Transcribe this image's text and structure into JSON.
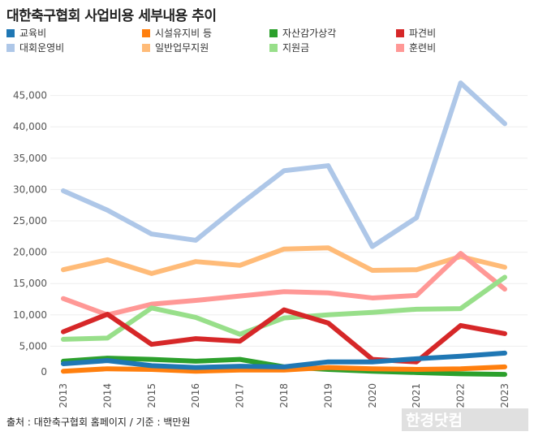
{
  "chart_data": {
    "type": "line",
    "title": "대한축구협회 사업비용 세부내용 추이",
    "categories": [
      "2013",
      "2014",
      "2015",
      "2016",
      "2017",
      "2018",
      "2019",
      "2020",
      "2021",
      "2022",
      "2023"
    ],
    "ylim": [
      0,
      47000
    ],
    "yticks": [
      "0",
      "5,000",
      "10,000",
      "15,000",
      "20,000",
      "25,000",
      "30,000",
      "35,000",
      "40,000",
      "45,000"
    ],
    "grid": true,
    "legend_position": "top",
    "series": [
      {
        "name": "교육비",
        "color": "#1f77b4",
        "values": [
          2200,
          2700,
          1900,
          1600,
          1800,
          1700,
          2500,
          2500,
          3000,
          3400,
          3900
        ]
      },
      {
        "name": "시설유지비 등",
        "color": "#ff7f0e",
        "values": [
          1000,
          1400,
          1300,
          1000,
          1200,
          1200,
          1600,
          1400,
          1300,
          1400,
          1700
        ]
      },
      {
        "name": "자산감가상각",
        "color": "#2ca02c",
        "values": [
          2600,
          3100,
          2900,
          2600,
          2900,
          1700,
          1300,
          1000,
          800,
          600,
          500
        ]
      },
      {
        "name": "파견비",
        "color": "#d62728",
        "values": [
          7300,
          10100,
          5300,
          6200,
          5800,
          10800,
          8700,
          2900,
          2500,
          8300,
          7000
        ]
      },
      {
        "name": "대회운영비",
        "color": "#aec7e8",
        "values": [
          29800,
          26700,
          22900,
          21900,
          27600,
          33000,
          33800,
          20900,
          25500,
          47000,
          40500
        ]
      },
      {
        "name": "일반업무지원",
        "color": "#ffbb78",
        "values": [
          17200,
          18800,
          16600,
          18500,
          17900,
          20500,
          20700,
          17100,
          17200,
          19300,
          17600
        ]
      },
      {
        "name": "지원금",
        "color": "#98df8a",
        "values": [
          6100,
          6300,
          11100,
          9600,
          6900,
          9500,
          10000,
          10400,
          10900,
          11000,
          16000
        ]
      },
      {
        "name": "훈련비",
        "color": "#ff9896",
        "values": [
          12600,
          10000,
          11700,
          12300,
          13000,
          13700,
          13500,
          12700,
          13100,
          19800,
          14100
        ]
      }
    ]
  },
  "footer": "출처 : 대한축구협회 홈페이지 / 기준 : 백만원",
  "watermark": "한경닷컴"
}
